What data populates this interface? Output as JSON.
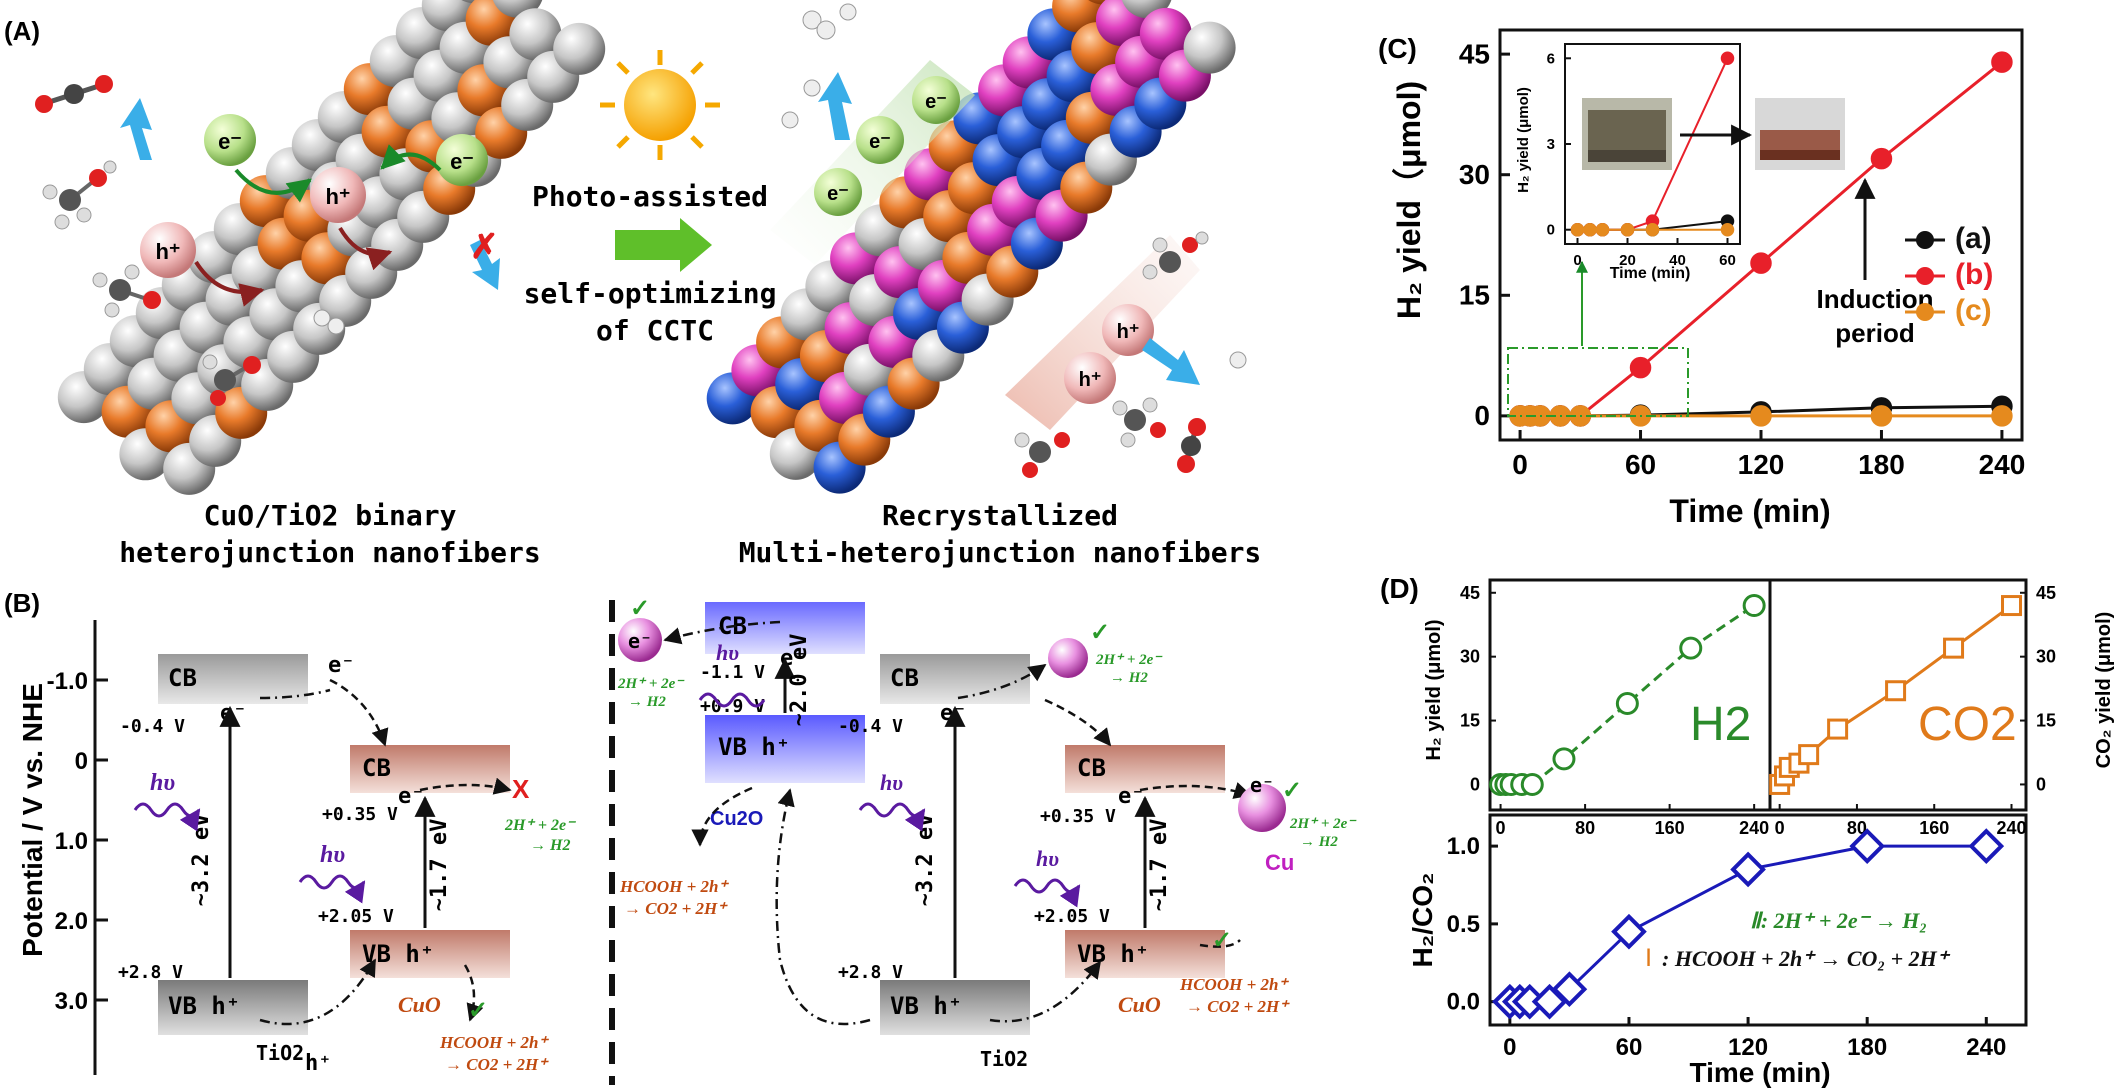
{
  "panel_labels": {
    "a": "(A)",
    "b": "(B)",
    "c": "(C)",
    "d": "(D)"
  },
  "panel_a": {
    "photo_assisted": "Photo-assisted",
    "self_optimizing": "self-optimizing",
    "of_cctc": "of CCTC",
    "left_caption_1": "CuO/TiO2 binary",
    "left_caption_2": "heterojunction nanofibers",
    "right_caption_1": "Recrystallized",
    "right_caption_2": "Multi-heterojunction nanofibers",
    "electron": "e⁻",
    "hole": "h⁺",
    "colors": {
      "cu": "#e87a2a",
      "ti": "#c9c9c9",
      "blue": "#2a5fd8",
      "magenta": "#e040c0",
      "sun": "#f5a800",
      "arrow": "#5fbf2a",
      "cyan": "#3aaee8"
    }
  },
  "panel_b": {
    "y_axis_label": "Potential / V vs. NHE",
    "y_ticks": [
      "-1.0",
      "0",
      "1.0",
      "2.0",
      "3.0"
    ],
    "cb": "CB",
    "vb_h": "VB h⁺",
    "e": "e⁻",
    "h": "h⁺",
    "hv": "hυ",
    "tio2": "TiO2",
    "cuo": "CuO",
    "cu2o": "Cu2O",
    "cu": "Cu",
    "v_m04": "-0.4 V",
    "v_p035": "+0.35 V",
    "v_p205": "+2.05 V",
    "v_p28": "+2.8 V",
    "v_m11": "-1.1 V",
    "v_p09": "+0.9 V",
    "gap_32": "~3.2 eV",
    "gap_17": "~1.7 eV",
    "gap_20": "~2.0 eV",
    "h2_line1": "2H⁺ + 2e⁻",
    "h2_line2": "→ H2",
    "hcooh_line1": "HCOOH + 2h⁺",
    "hcooh_line2": "→ CO2 + 2H⁺",
    "cross": "X",
    "check": "✓"
  },
  "panel_c": {
    "ylabel": "H₂ yield（μmol)",
    "xlabel": "Time (min)",
    "legend": [
      "(a)",
      "(b)",
      "(c)"
    ],
    "induction_1": "Induction",
    "induction_2": "period",
    "inset_ylabel": "H₂ yield (μmol)",
    "inset_xlabel": "Time (min)",
    "colors": {
      "a": "#111111",
      "b": "#e8202a",
      "c": "#e58a1e"
    }
  },
  "panel_d": {
    "h2_ylabel": "H₂ yield (μmol)",
    "co2_ylabel": "CO₂ yield (μmol)",
    "h2_big": "H2",
    "co2_big": "CO2",
    "ratio_ylabel": "H₂/CO₂",
    "xlabel": "Time (min)",
    "eq2": "Ⅱ: 2H⁺ + 2e⁻ → H₂",
    "eq1_num": "Ⅰ",
    "eq1": ": HCOOH + 2h⁺ → CO₂ + 2H⁺",
    "colors": {
      "h2": "#2a8a2a",
      "co2": "#e07a1a",
      "ratio": "#1a1ab8",
      "eq1": "#e07a1a",
      "eq2": "#2a8a2a"
    }
  },
  "chart_data": [
    {
      "type": "line",
      "panel": "C",
      "xlabel": "Time (min)",
      "ylabel": "H₂ yield（μmol)",
      "xlim": [
        -10,
        250
      ],
      "ylim": [
        -3,
        48
      ],
      "xticks": [
        0,
        60,
        120,
        180,
        240
      ],
      "yticks": [
        0,
        15,
        30,
        45
      ],
      "series": [
        {
          "name": "(a)",
          "x": [
            0,
            5,
            10,
            20,
            30,
            60,
            120,
            180,
            240
          ],
          "y": [
            0,
            0,
            0,
            0,
            0,
            0.1,
            0.5,
            1,
            1.2
          ]
        },
        {
          "name": "(b)",
          "x": [
            0,
            5,
            10,
            20,
            30,
            60,
            120,
            180,
            240
          ],
          "y": [
            0,
            0,
            0,
            0,
            0,
            6,
            19,
            32,
            44
          ]
        },
        {
          "name": "(c)",
          "x": [
            0,
            5,
            10,
            20,
            30,
            60,
            120,
            180,
            240
          ],
          "y": [
            0,
            0,
            0,
            0,
            0,
            0,
            0,
            0,
            0
          ]
        }
      ]
    },
    {
      "type": "line",
      "panel": "C-inset",
      "xlabel": "Time (min)",
      "ylabel": "H₂ yield (μmol)",
      "xlim": [
        -5,
        65
      ],
      "ylim": [
        -0.5,
        6.5
      ],
      "xticks": [
        0,
        20,
        40,
        60
      ],
      "yticks": [
        0,
        3,
        6
      ],
      "series": [
        {
          "name": "(a)",
          "x": [
            0,
            5,
            10,
            20,
            30,
            60
          ],
          "y": [
            0,
            0,
            0,
            0,
            0,
            0.3
          ]
        },
        {
          "name": "(b)",
          "x": [
            0,
            5,
            10,
            20,
            30,
            60
          ],
          "y": [
            0,
            0,
            0,
            0,
            0.3,
            6
          ]
        },
        {
          "name": "(c)",
          "x": [
            0,
            5,
            10,
            20,
            30,
            60
          ],
          "y": [
            0,
            0,
            0,
            0,
            0,
            0
          ]
        }
      ]
    },
    {
      "type": "line",
      "panel": "D-top-left",
      "ylabel": "H₂ yield (μmol)",
      "xlim": [
        -10,
        255
      ],
      "ylim": [
        -6,
        48
      ],
      "xticks": [
        0,
        80,
        160,
        240
      ],
      "yticks": [
        0,
        15,
        30,
        45
      ],
      "series": [
        {
          "name": "H2",
          "x": [
            0,
            5,
            10,
            20,
            30,
            60,
            120,
            180,
            240
          ],
          "y": [
            0,
            0,
            0,
            0,
            0,
            6,
            19,
            32,
            42
          ]
        }
      ]
    },
    {
      "type": "line",
      "panel": "D-top-right",
      "ylabel": "CO₂ yield (μmol)",
      "xlim": [
        -10,
        255
      ],
      "ylim": [
        -6,
        48
      ],
      "xticks": [
        0,
        80,
        160,
        240
      ],
      "yticks": [
        0,
        15,
        30,
        45
      ],
      "series": [
        {
          "name": "CO2",
          "x": [
            0,
            5,
            10,
            20,
            30,
            60,
            120,
            180,
            240
          ],
          "y": [
            0,
            2,
            4,
            5,
            7,
            13,
            22,
            32,
            42
          ]
        }
      ]
    },
    {
      "type": "line",
      "panel": "D-bottom",
      "xlabel": "Time (min)",
      "ylabel": "H₂/CO₂",
      "xlim": [
        -10,
        260
      ],
      "ylim": [
        -0.15,
        1.2
      ],
      "xticks": [
        0,
        60,
        120,
        180,
        240
      ],
      "yticks": [
        0.0,
        0.5,
        1.0
      ],
      "series": [
        {
          "name": "H2/CO2",
          "x": [
            0,
            5,
            10,
            20,
            30,
            60,
            120,
            180,
            240
          ],
          "y": [
            0,
            0,
            0,
            0,
            0.08,
            0.45,
            0.85,
            1.0,
            1.0
          ]
        }
      ]
    }
  ]
}
